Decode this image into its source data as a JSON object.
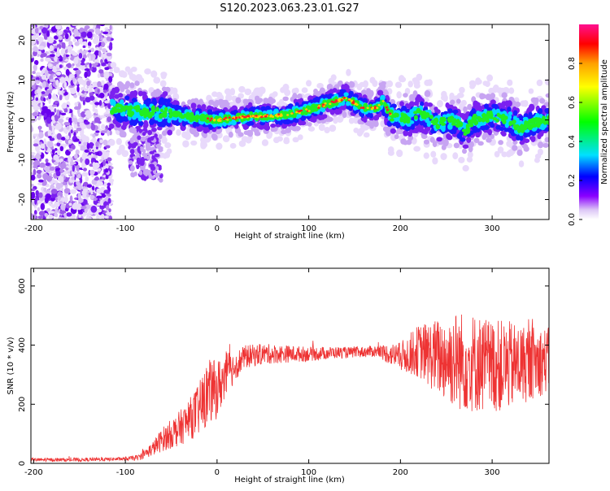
{
  "title": "S120.2023.063.23.01.G27",
  "chart_data": [
    {
      "type": "heatmap",
      "xlabel": "Height of straight line (km)",
      "ylabel": "Frequency (Hz)",
      "xlim": [
        -203,
        362
      ],
      "ylim": [
        -25,
        24
      ],
      "xticks": [
        -200,
        -100,
        0,
        100,
        200,
        300
      ],
      "yticks": [
        -20,
        -10,
        0,
        10,
        20
      ],
      "colorbar": {
        "label": "Normalized spectral amplitude",
        "range": [
          0,
          1
        ],
        "ticks": [
          0.0,
          0.2,
          0.4,
          0.6,
          0.8
        ],
        "colormap": "rainbow (violet to magenta)"
      },
      "ridge_frequency_track": {
        "x": [
          -115,
          -100,
          -80,
          -60,
          -40,
          -20,
          0,
          20,
          40,
          60,
          80,
          100,
          120,
          140,
          160,
          175,
          180,
          190,
          200,
          210,
          220,
          240,
          260,
          270,
          280,
          300,
          320,
          330,
          340,
          362
        ],
        "y": [
          3,
          2.5,
          2,
          2,
          1,
          0.5,
          0,
          0.5,
          1,
          1,
          1.5,
          2.5,
          4,
          5.5,
          3,
          3,
          5,
          1,
          1,
          0,
          2,
          -1,
          0,
          -3,
          0,
          1,
          0,
          -2,
          -1,
          0
        ]
      },
      "noise_region_x": [
        -203,
        -115
      ]
    },
    {
      "type": "line",
      "xlabel": "Height of straight line (km)",
      "ylabel": "SNR (10 * v/v)",
      "xlim": [
        -203,
        362
      ],
      "ylim": [
        0,
        660
      ],
      "xticks": [
        -200,
        -100,
        0,
        100,
        200,
        300
      ],
      "yticks": [
        0,
        200,
        400,
        600
      ],
      "series_color": "#ee3333",
      "envelope": {
        "x": [
          -203,
          -150,
          -100,
          -85,
          -70,
          -60,
          -50,
          -40,
          -30,
          -20,
          -10,
          0,
          10,
          20,
          30,
          50,
          75,
          100,
          130,
          150,
          175,
          200,
          220,
          240,
          260,
          280,
          300,
          320,
          340,
          362
        ],
        "mean": [
          12,
          12,
          15,
          20,
          50,
          80,
          100,
          120,
          150,
          180,
          240,
          250,
          300,
          330,
          360,
          370,
          370,
          370,
          375,
          375,
          380,
          360,
          380,
          360,
          350,
          340,
          330,
          330,
          340,
          350
        ],
        "spread": [
          6,
          6,
          6,
          10,
          25,
          40,
          50,
          60,
          70,
          90,
          110,
          100,
          80,
          50,
          40,
          35,
          30,
          25,
          20,
          18,
          20,
          50,
          90,
          130,
          170,
          170,
          160,
          150,
          130,
          110
        ]
      }
    }
  ]
}
